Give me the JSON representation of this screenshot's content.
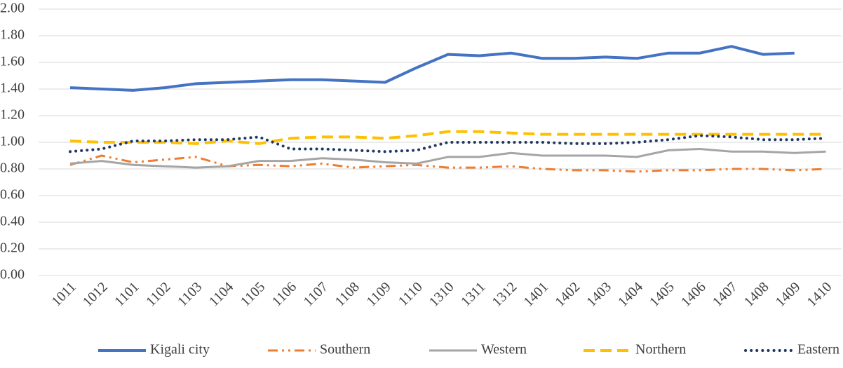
{
  "chart_data": {
    "type": "line",
    "categories": [
      "1011",
      "1012",
      "1101",
      "1102",
      "1103",
      "1104",
      "1105",
      "1106",
      "1107",
      "1108",
      "1109",
      "1110",
      "1310",
      "1311",
      "1312",
      "1401",
      "1402",
      "1403",
      "1404",
      "1405",
      "1406",
      "1407",
      "1408",
      "1409",
      "1410"
    ],
    "series": [
      {
        "name": "Kigali city",
        "color": "#4472c4",
        "values": [
          1.41,
          1.4,
          1.39,
          1.41,
          1.44,
          1.45,
          1.46,
          1.47,
          1.47,
          1.46,
          1.45,
          1.56,
          1.66,
          1.65,
          1.67,
          1.63,
          1.63,
          1.64,
          1.63,
          1.67,
          1.67,
          1.72,
          1.66,
          1.67,
          null
        ]
      },
      {
        "name": "Southern",
        "color": "#ed7d31",
        "values": [
          0.83,
          0.9,
          0.85,
          0.87,
          0.89,
          0.82,
          0.83,
          0.82,
          0.84,
          0.81,
          0.82,
          0.83,
          0.81,
          0.81,
          0.82,
          0.8,
          0.79,
          0.79,
          0.78,
          0.79,
          0.79,
          0.8,
          0.8,
          0.79,
          0.8
        ]
      },
      {
        "name": "Western",
        "color": "#a5a5a5",
        "values": [
          0.84,
          0.86,
          0.83,
          0.82,
          0.81,
          0.82,
          0.86,
          0.86,
          0.88,
          0.87,
          0.85,
          0.84,
          0.89,
          0.89,
          0.92,
          0.9,
          0.9,
          0.9,
          0.89,
          0.94,
          0.95,
          0.93,
          0.93,
          0.92,
          0.93
        ]
      },
      {
        "name": "Northern",
        "color": "#ffc000",
        "values": [
          1.01,
          1.0,
          1.0,
          1.0,
          0.99,
          1.01,
          0.99,
          1.03,
          1.04,
          1.04,
          1.03,
          1.05,
          1.08,
          1.08,
          1.07,
          1.06,
          1.06,
          1.06,
          1.06,
          1.06,
          1.06,
          1.06,
          1.06,
          1.06,
          1.06
        ]
      },
      {
        "name": "Eastern",
        "color": "#203864",
        "values": [
          0.93,
          0.95,
          1.01,
          1.01,
          1.02,
          1.02,
          1.04,
          0.95,
          0.95,
          0.94,
          0.93,
          0.94,
          1.0,
          1.0,
          1.0,
          1.0,
          0.99,
          0.99,
          1.0,
          1.02,
          1.05,
          1.04,
          1.02,
          1.02,
          1.03
        ]
      }
    ],
    "ylim": [
      0,
      2
    ],
    "yticks": [
      {
        "value": 0,
        "label": "0.00"
      },
      {
        "value": 0.2,
        "label": "0.20"
      },
      {
        "value": 0.4,
        "label": "0.40"
      },
      {
        "value": 0.6,
        "label": "0.60"
      },
      {
        "value": 0.8,
        "label": "0.80"
      },
      {
        "value": 1,
        "label": "1.00"
      },
      {
        "value": 1.2,
        "label": "1.20"
      },
      {
        "value": 1.4,
        "label": "1.40"
      },
      {
        "value": 1.6,
        "label": "1.60"
      },
      {
        "value": 1.8,
        "label": "1.80"
      },
      {
        "value": 2,
        "label": "2.00"
      }
    ],
    "grid": true,
    "legend": "bottom"
  }
}
